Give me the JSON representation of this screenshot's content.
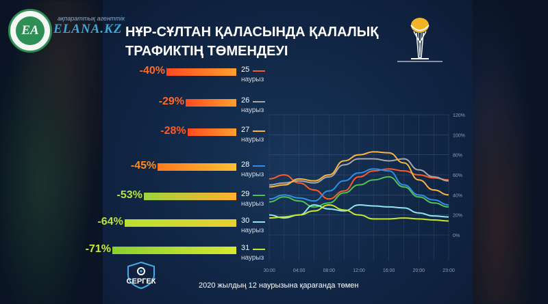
{
  "header": {
    "agency_label": "ақпараттық агенттік",
    "agency_name": "ELANA.KZ",
    "logo_mark": "EA",
    "title_line1": "НҰР-СҰЛТАН ҚАЛАСЫНДА ҚАЛАЛЫҚ",
    "title_line2": "ТРАФИКТІҢ ТӨМЕНДЕУІ"
  },
  "colors": {
    "d25": "#ff5a2a",
    "d26": "#a8a8a8",
    "d27": "#ffb43a",
    "d28": "#2f8fe8",
    "d29": "#4fc24f",
    "d30": "#8fe6f0",
    "d31": "#c8e82a"
  },
  "chart_data": [
    {
      "type": "bar",
      "orientation": "horizontal",
      "title": "",
      "categories": [
        "25 наурыз",
        "26 наурыз",
        "27 наурыз",
        "28 наурыз",
        "29 наурыз",
        "30 наурыз",
        "31 наурыз"
      ],
      "day_numbers": [
        "25",
        "26",
        "27",
        "28",
        "29",
        "30",
        "31"
      ],
      "month_label": "наурыз",
      "values": [
        -40,
        -29,
        -28,
        -45,
        -53,
        -64,
        -71
      ],
      "labels": [
        "-40%",
        "-29%",
        "-28%",
        "-45%",
        "-53%",
        "-64%",
        "-71%"
      ]
    },
    {
      "type": "line",
      "x": [
        "00:00",
        "02:00",
        "04:00",
        "06:00",
        "08:00",
        "10:00",
        "12:00",
        "14:00",
        "16:00",
        "18:00",
        "20:00",
        "22:00",
        "23:00"
      ],
      "xticks": [
        "00:00",
        "04:00",
        "08:00",
        "12:00",
        "16:00",
        "20:00",
        "23:00"
      ],
      "yticks": [
        "0%",
        "20%",
        "40%",
        "60%",
        "80%",
        "100%",
        "120%"
      ],
      "ylim": [
        0,
        120
      ],
      "grid": true,
      "series": [
        {
          "name": "25 наурыз",
          "values": [
            56,
            60,
            52,
            45,
            36,
            44,
            58,
            64,
            66,
            64,
            60,
            57,
            55
          ]
        },
        {
          "name": "26 наурыз",
          "values": [
            50,
            52,
            54,
            52,
            58,
            70,
            76,
            76,
            74,
            76,
            65,
            58,
            54
          ]
        },
        {
          "name": "27 наурыз",
          "values": [
            48,
            50,
            56,
            54,
            60,
            74,
            80,
            83,
            82,
            72,
            55,
            45,
            40
          ]
        },
        {
          "name": "28 наурыз",
          "values": [
            36,
            40,
            37,
            34,
            44,
            54,
            62,
            66,
            64,
            50,
            40,
            35,
            30
          ]
        },
        {
          "name": "29 наурыз",
          "values": [
            33,
            38,
            34,
            28,
            32,
            42,
            50,
            55,
            58,
            48,
            38,
            32,
            28
          ]
        },
        {
          "name": "30 наурыз",
          "values": [
            20,
            17,
            20,
            30,
            26,
            24,
            30,
            29,
            28,
            27,
            22,
            19,
            18
          ]
        },
        {
          "name": "31 наурыз",
          "values": [
            17,
            18,
            20,
            24,
            30,
            25,
            20,
            16,
            16,
            17,
            16,
            15,
            14
          ]
        }
      ]
    }
  ],
  "footer": {
    "brand": "СЕРГЕК",
    "caption": "2020 жылдың 12 наурызына қарағанда төмен"
  }
}
